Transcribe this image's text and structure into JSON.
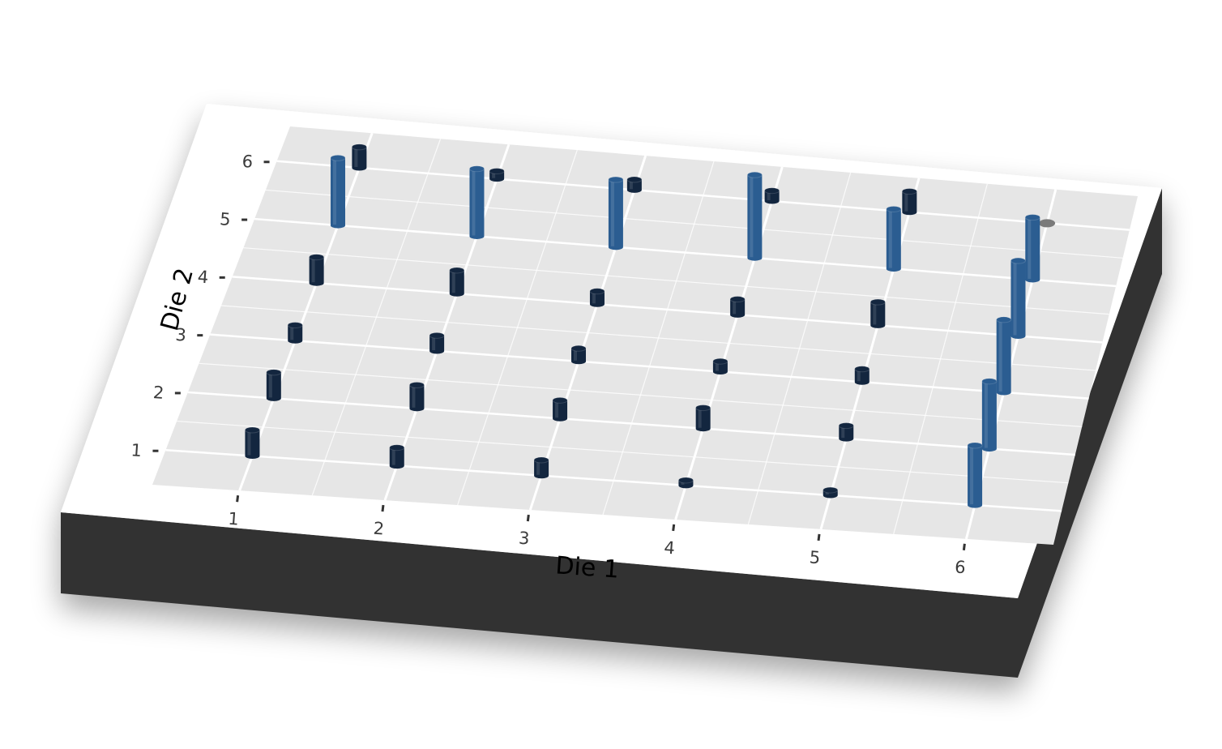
{
  "colors": {
    "panel": "#e6e6e6",
    "grid": "#ffffff",
    "base_top": "#ffffff",
    "base_side": "#333333",
    "bar_light": "#2b5d91",
    "bar_dark": "#13263f",
    "empty_point": "#7a7a7a"
  },
  "chart_data": {
    "type": "3d-bar",
    "title": "",
    "xlabel": "Die 1",
    "ylabel": "Die 2",
    "x_ticks": [
      "1",
      "2",
      "3",
      "4",
      "5",
      "6"
    ],
    "y_ticks": [
      "1",
      "2",
      "3",
      "4",
      "5",
      "6"
    ],
    "grid": true,
    "x_range": [
      0.4,
      6.6
    ],
    "y_range": [
      0.4,
      6.6
    ],
    "points": [
      {
        "x": 1,
        "y": 1,
        "value": 1,
        "color": "#13263f"
      },
      {
        "x": 1,
        "y": 2,
        "value": 1,
        "color": "#13263f"
      },
      {
        "x": 1,
        "y": 3,
        "value": 0.6,
        "color": "#13263f"
      },
      {
        "x": 1,
        "y": 4,
        "value": 1,
        "color": "#13263f"
      },
      {
        "x": 1,
        "y": 5,
        "value": 2.6,
        "color": "#2b5d91"
      },
      {
        "x": 1,
        "y": 6,
        "value": 0.8,
        "color": "#13263f"
      },
      {
        "x": 2,
        "y": 1,
        "value": 0.7,
        "color": "#13263f"
      },
      {
        "x": 2,
        "y": 2,
        "value": 0.9,
        "color": "#13263f"
      },
      {
        "x": 2,
        "y": 3,
        "value": 0.6,
        "color": "#13263f"
      },
      {
        "x": 2,
        "y": 4,
        "value": 0.9,
        "color": "#13263f"
      },
      {
        "x": 2,
        "y": 5,
        "value": 2.6,
        "color": "#2b5d91"
      },
      {
        "x": 2,
        "y": 6,
        "value": 0.3,
        "color": "#13263f"
      },
      {
        "x": 3,
        "y": 1,
        "value": 0.6,
        "color": "#13263f"
      },
      {
        "x": 3,
        "y": 2,
        "value": 0.7,
        "color": "#13263f"
      },
      {
        "x": 3,
        "y": 3,
        "value": 0.5,
        "color": "#13263f"
      },
      {
        "x": 3,
        "y": 4,
        "value": 0.5,
        "color": "#13263f"
      },
      {
        "x": 3,
        "y": 5,
        "value": 2.6,
        "color": "#2b5d91"
      },
      {
        "x": 3,
        "y": 6,
        "value": 0.4,
        "color": "#13263f"
      },
      {
        "x": 4,
        "y": 1,
        "value": 0.2,
        "color": "#13263f"
      },
      {
        "x": 4,
        "y": 2,
        "value": 0.8,
        "color": "#13263f"
      },
      {
        "x": 4,
        "y": 3,
        "value": 0.4,
        "color": "#13263f"
      },
      {
        "x": 4,
        "y": 4,
        "value": 0.6,
        "color": "#13263f"
      },
      {
        "x": 4,
        "y": 5,
        "value": 3.2,
        "color": "#2b5d91"
      },
      {
        "x": 4,
        "y": 6,
        "value": 0.4,
        "color": "#13263f"
      },
      {
        "x": 5,
        "y": 1,
        "value": 0.2,
        "color": "#13263f"
      },
      {
        "x": 5,
        "y": 2,
        "value": 0.5,
        "color": "#13263f"
      },
      {
        "x": 5,
        "y": 3,
        "value": 0.5,
        "color": "#13263f"
      },
      {
        "x": 5,
        "y": 4,
        "value": 0.9,
        "color": "#13263f"
      },
      {
        "x": 5,
        "y": 5,
        "value": 2.3,
        "color": "#2b5d91"
      },
      {
        "x": 5,
        "y": 6,
        "value": 0.8,
        "color": "#13263f"
      },
      {
        "x": 6,
        "y": 1,
        "value": 2.3,
        "color": "#2b5d91"
      },
      {
        "x": 6,
        "y": 2,
        "value": 2.6,
        "color": "#2b5d91"
      },
      {
        "x": 6,
        "y": 3,
        "value": 2.8,
        "color": "#2b5d91"
      },
      {
        "x": 6,
        "y": 4,
        "value": 2.9,
        "color": "#2b5d91"
      },
      {
        "x": 6,
        "y": 5,
        "value": 2.4,
        "color": "#2b5d91"
      },
      {
        "x": 6,
        "y": 6,
        "value": 0,
        "color": "#7a7a7a"
      }
    ]
  }
}
